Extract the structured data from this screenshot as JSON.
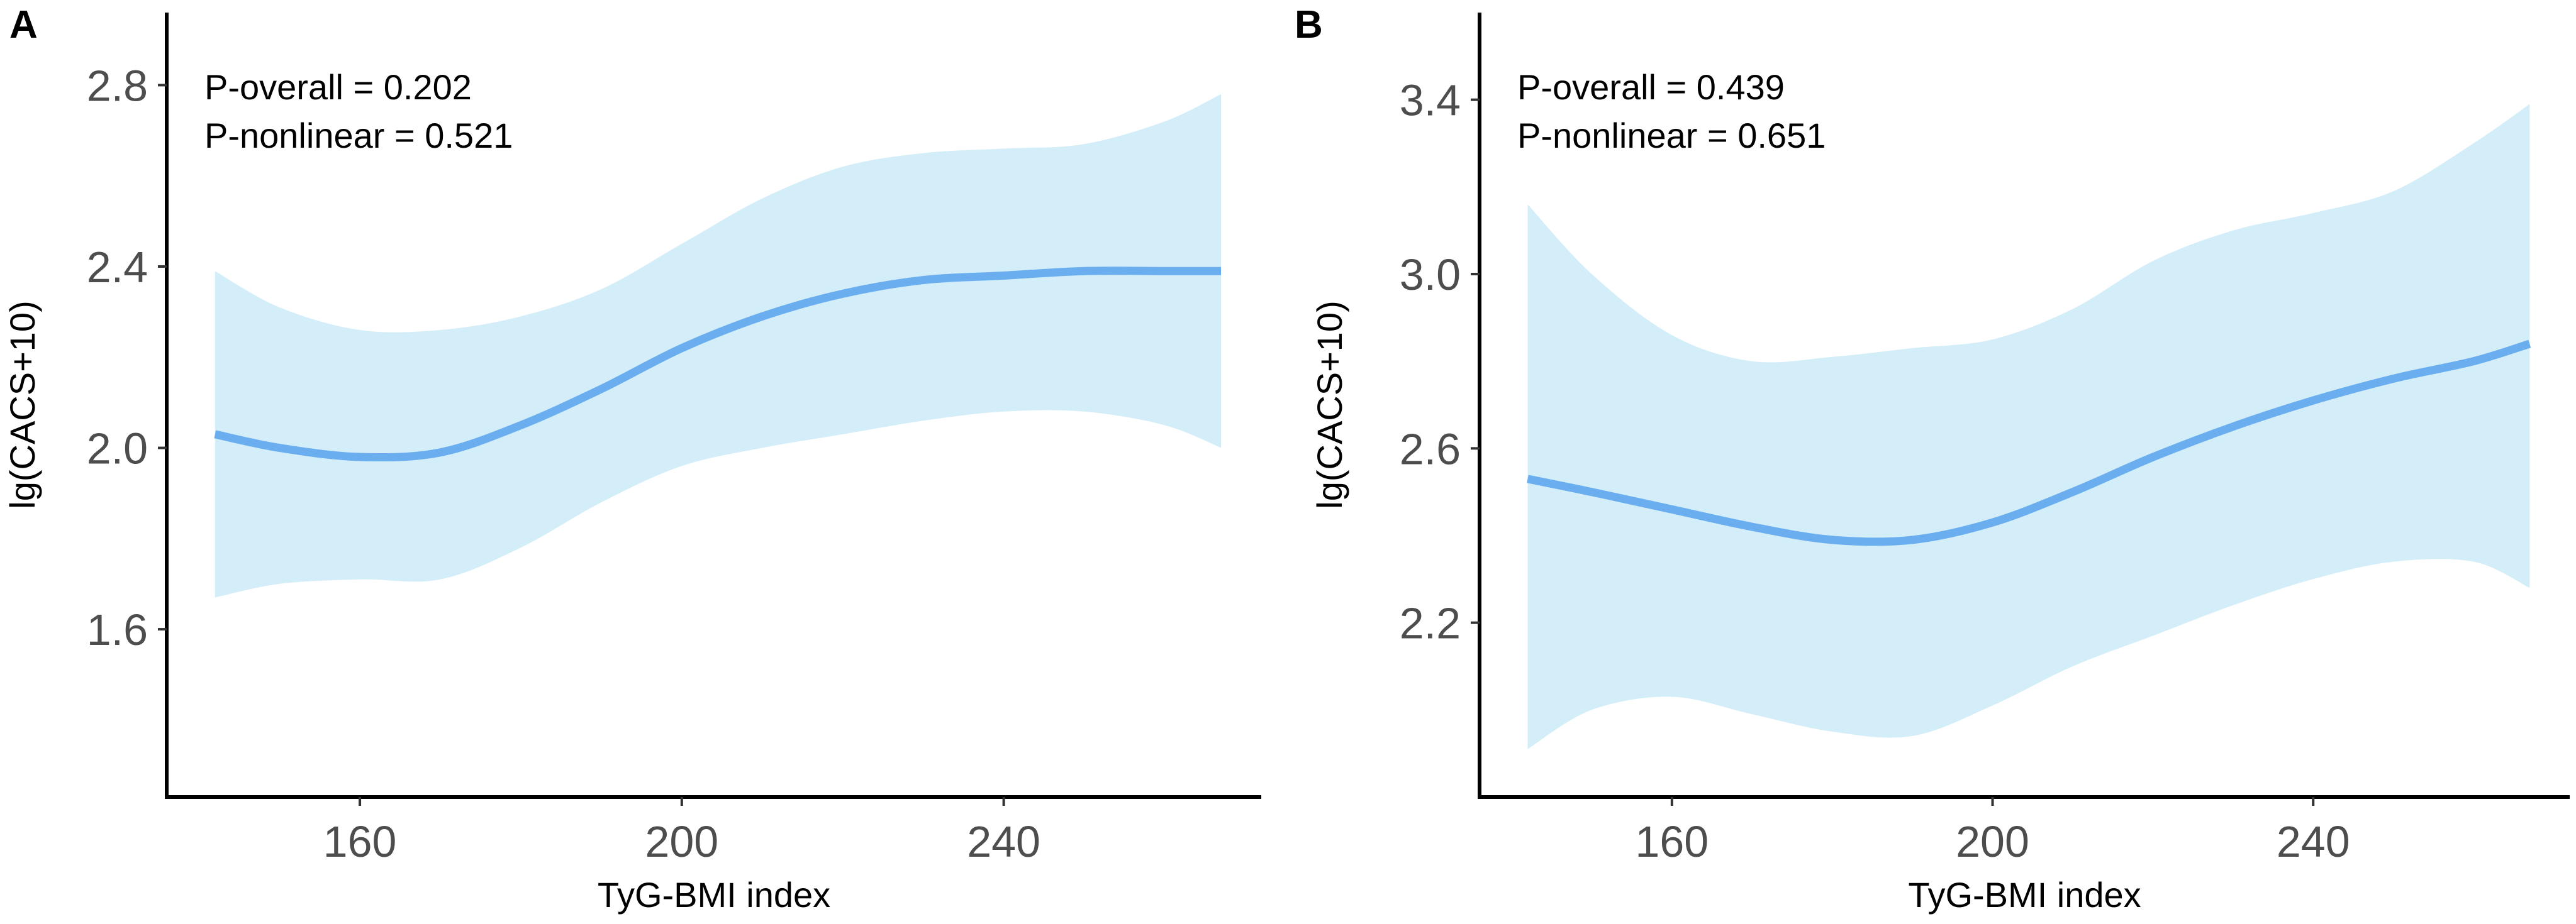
{
  "chart_data": [
    {
      "panel_label": "A",
      "type": "line",
      "xlabel": "TyG-BMI index",
      "ylabel": "lg(CACS+10)",
      "xlim": [
        136,
        272
      ],
      "ylim": [
        1.23,
        2.96
      ],
      "x_ticks": [
        160,
        200,
        240
      ],
      "x_tick_labels": [
        "160",
        "200",
        "240"
      ],
      "y_ticks": [
        1.6,
        2.0,
        2.4,
        2.8
      ],
      "y_tick_labels": [
        "1.6",
        "2.0",
        "2.4",
        "2.8"
      ],
      "annotations": [
        "P-overall = 0.202",
        "P-nonlinear = 0.521"
      ],
      "series": [
        {
          "name": "fit",
          "x": [
            142,
            150,
            160,
            170,
            180,
            190,
            200,
            210,
            220,
            230,
            240,
            250,
            260,
            267
          ],
          "y": [
            2.03,
            2.0,
            1.98,
            1.99,
            2.05,
            2.13,
            2.22,
            2.29,
            2.34,
            2.37,
            2.38,
            2.39,
            2.39,
            2.39
          ]
        },
        {
          "name": "ci_upper",
          "x": [
            142,
            150,
            160,
            170,
            180,
            190,
            200,
            210,
            220,
            230,
            240,
            250,
            260,
            267
          ],
          "y": [
            2.39,
            2.31,
            2.26,
            2.26,
            2.29,
            2.35,
            2.45,
            2.55,
            2.62,
            2.65,
            2.66,
            2.67,
            2.72,
            2.78
          ]
        },
        {
          "name": "ci_lower",
          "x": [
            142,
            150,
            160,
            170,
            180,
            190,
            200,
            210,
            220,
            230,
            240,
            250,
            260,
            267
          ],
          "y": [
            1.67,
            1.7,
            1.71,
            1.71,
            1.78,
            1.88,
            1.96,
            2.0,
            2.03,
            2.06,
            2.08,
            2.08,
            2.05,
            2.0
          ]
        }
      ]
    },
    {
      "panel_label": "B",
      "type": "line",
      "xlabel": "TyG-BMI index",
      "ylabel": "lg(CACS+10)",
      "xlim": [
        136,
        272
      ],
      "ylim": [
        1.8,
        3.6
      ],
      "x_ticks": [
        160,
        200,
        240
      ],
      "x_tick_labels": [
        "160",
        "200",
        "240"
      ],
      "y_ticks": [
        2.2,
        2.6,
        3.0,
        3.4
      ],
      "y_tick_labels": [
        "2.2",
        "2.6",
        "3.0",
        "3.4"
      ],
      "annotations": [
        "P-overall = 0.439",
        "P-nonlinear = 0.651"
      ],
      "series": [
        {
          "name": "fit",
          "x": [
            142,
            150,
            160,
            170,
            180,
            190,
            200,
            210,
            220,
            230,
            240,
            250,
            260,
            267
          ],
          "y": [
            2.53,
            2.5,
            2.46,
            2.42,
            2.39,
            2.39,
            2.43,
            2.5,
            2.58,
            2.65,
            2.71,
            2.76,
            2.8,
            2.84
          ]
        },
        {
          "name": "ci_upper",
          "x": [
            142,
            150,
            160,
            170,
            180,
            190,
            200,
            210,
            220,
            230,
            240,
            250,
            260,
            267
          ],
          "y": [
            3.16,
            3.0,
            2.86,
            2.8,
            2.81,
            2.83,
            2.85,
            2.92,
            3.03,
            3.1,
            3.14,
            3.19,
            3.3,
            3.39
          ]
        },
        {
          "name": "ci_lower",
          "x": [
            142,
            150,
            160,
            170,
            180,
            190,
            200,
            210,
            220,
            230,
            240,
            250,
            260,
            267
          ],
          "y": [
            1.91,
            2.0,
            2.03,
            1.99,
            1.95,
            1.94,
            2.01,
            2.1,
            2.17,
            2.24,
            2.3,
            2.34,
            2.34,
            2.28
          ]
        }
      ]
    }
  ]
}
